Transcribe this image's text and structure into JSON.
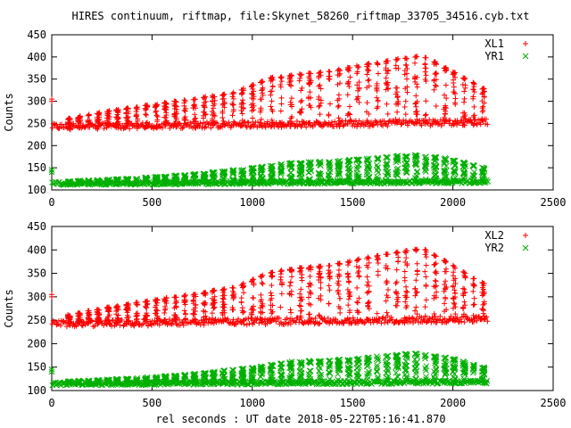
{
  "figure": {
    "title": "HIRES continuum, riftmap, file:Skynet_58260_riftmap_33705_34516.cyb.txt",
    "xlabel": "rel seconds : UT date 2018-05-22T05:16:41.870"
  },
  "chart_data": [
    {
      "type": "scatter",
      "ylabel": "Counts",
      "xlim": [
        0,
        2500
      ],
      "ylim": [
        100,
        450
      ],
      "xticks": [
        "0",
        "500",
        "1000",
        "1500",
        "2000",
        "2500"
      ],
      "yticks": [
        "100",
        "150",
        "200",
        "250",
        "300",
        "350",
        "400",
        "450"
      ],
      "legend_position": "top-right",
      "x": {
        "start": 0,
        "end": 2170,
        "step": 5,
        "cycle_period_s": 48,
        "first_cycle_at_s": 80
      },
      "series": [
        {
          "name": "XL1",
          "color": "#ff0000",
          "marker": "plus",
          "base_level": [
            [
              0,
              240
            ],
            [
              2170,
              250
            ]
          ],
          "peak_level": [
            [
              80,
              262
            ],
            [
              300,
              280
            ],
            [
              600,
              300
            ],
            [
              900,
              320
            ],
            [
              1100,
              355
            ],
            [
              1400,
              370
            ],
            [
              1700,
              395
            ],
            [
              1850,
              405
            ],
            [
              1950,
              380
            ],
            [
              2150,
              330
            ]
          ],
          "outliers": [
            [
              0,
              300
            ],
            [
              0,
              305
            ]
          ]
        },
        {
          "name": "YR1",
          "color": "#00b000",
          "marker": "cross",
          "base_level": [
            [
              0,
              113
            ],
            [
              2170,
              117
            ]
          ],
          "peak_level": [
            [
              80,
              120
            ],
            [
              400,
              126
            ],
            [
              700,
              135
            ],
            [
              1000,
              150
            ],
            [
              1200,
              162
            ],
            [
              1500,
              168
            ],
            [
              1800,
              180
            ],
            [
              2000,
              170
            ],
            [
              2150,
              150
            ]
          ],
          "outliers": [
            [
              0,
              140
            ],
            [
              0,
              145
            ]
          ]
        }
      ]
    },
    {
      "type": "scatter",
      "ylabel": "Counts",
      "xlim": [
        0,
        2500
      ],
      "ylim": [
        100,
        450
      ],
      "xticks": [
        "0",
        "500",
        "1000",
        "1500",
        "2000",
        "2500"
      ],
      "yticks": [
        "100",
        "150",
        "200",
        "250",
        "300",
        "350",
        "400",
        "450"
      ],
      "legend_position": "top-right",
      "x": {
        "start": 0,
        "end": 2170,
        "step": 5,
        "cycle_period_s": 48,
        "first_cycle_at_s": 80
      },
      "series": [
        {
          "name": "XL2",
          "color": "#ff0000",
          "marker": "plus",
          "base_level": [
            [
              0,
              240
            ],
            [
              2170,
              250
            ]
          ],
          "peak_level": [
            [
              80,
              262
            ],
            [
              300,
              280
            ],
            [
              600,
              300
            ],
            [
              900,
              320
            ],
            [
              1100,
              355
            ],
            [
              1400,
              370
            ],
            [
              1700,
              395
            ],
            [
              1850,
              405
            ],
            [
              1950,
              380
            ],
            [
              2150,
              330
            ]
          ],
          "outliers": [
            [
              0,
              300
            ],
            [
              0,
              305
            ]
          ]
        },
        {
          "name": "YR2",
          "color": "#00b000",
          "marker": "cross",
          "base_level": [
            [
              0,
              113
            ],
            [
              2170,
              117
            ]
          ],
          "peak_level": [
            [
              80,
              120
            ],
            [
              400,
              126
            ],
            [
              700,
              135
            ],
            [
              1000,
              150
            ],
            [
              1200,
              162
            ],
            [
              1500,
              168
            ],
            [
              1800,
              180
            ],
            [
              2000,
              170
            ],
            [
              2150,
              150
            ]
          ],
          "outliers": [
            [
              0,
              140
            ],
            [
              0,
              145
            ]
          ]
        }
      ]
    }
  ]
}
